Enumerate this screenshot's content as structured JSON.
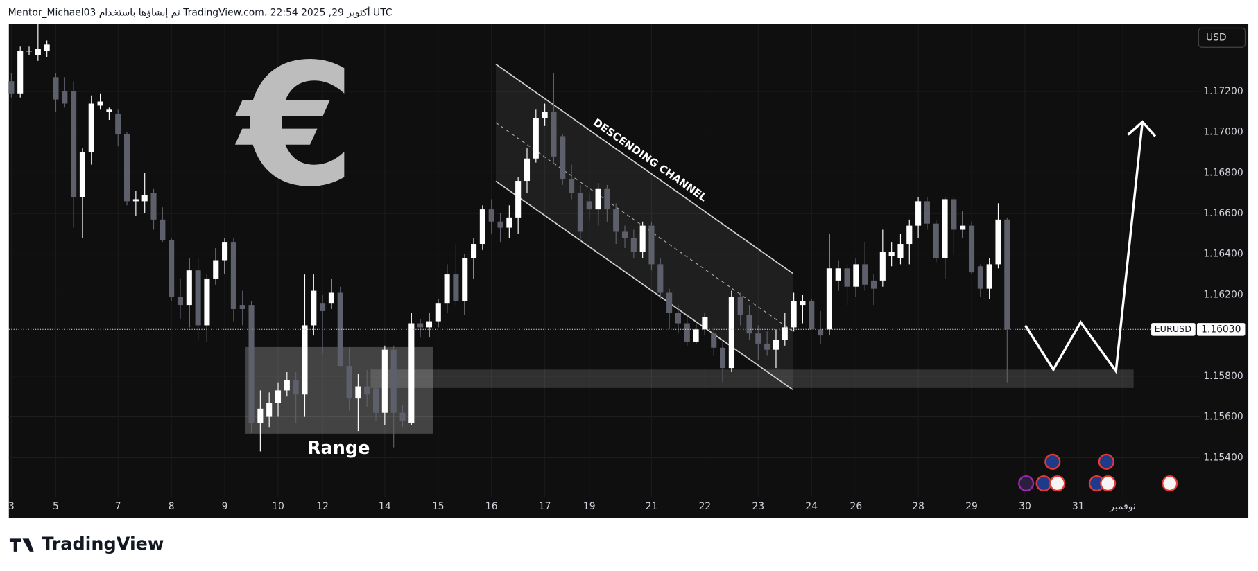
{
  "header": "Mentor_Michael03 تم إنشاؤها باستخدام TradingView.com، 22:54 2025 ,29 أكتوبر UTC",
  "footer": "TradingView",
  "chart_data": {
    "type": "candlestick",
    "symbol": "EURUSD",
    "currency": "USD",
    "annotations": {
      "channel": "DESCENDING CHANNEL",
      "range": "Range",
      "symbol": "€"
    },
    "colors": {
      "up": "#ffffff",
      "down": "#5d606b"
    },
    "grid": true,
    "last_price": {
      "value": 1.1603,
      "label": "1.16030"
    },
    "ylim": [
      1.15206,
      1.17531
    ],
    "yticks": [
      {
        "value": 1.154,
        "label": "1.15400"
      },
      {
        "value": 1.156,
        "label": "1.15600"
      },
      {
        "value": 1.158,
        "label": "1.15800"
      },
      {
        "value": 1.162,
        "label": "1.16200"
      },
      {
        "value": 1.164,
        "label": "1.16400"
      },
      {
        "value": 1.166,
        "label": "1.16600"
      },
      {
        "value": 1.168,
        "label": "1.16800"
      },
      {
        "value": 1.17,
        "label": "1.17000"
      },
      {
        "value": 1.172,
        "label": "1.17200"
      }
    ],
    "xlim": [
      -0.1,
      133.8
    ],
    "xticks": [
      {
        "value": 0,
        "label": "3"
      },
      {
        "value": 5,
        "label": "5"
      },
      {
        "value": 12,
        "label": "7"
      },
      {
        "value": 18,
        "label": "8"
      },
      {
        "value": 24,
        "label": "9"
      },
      {
        "value": 30,
        "label": "10"
      },
      {
        "value": 35,
        "label": "12"
      },
      {
        "value": 42,
        "label": "14"
      },
      {
        "value": 48,
        "label": "15"
      },
      {
        "value": 54,
        "label": "16"
      },
      {
        "value": 60,
        "label": "17"
      },
      {
        "value": 65,
        "label": "19"
      },
      {
        "value": 72,
        "label": "21"
      },
      {
        "value": 78,
        "label": "22"
      },
      {
        "value": 84,
        "label": "23"
      },
      {
        "value": 90,
        "label": "24"
      },
      {
        "value": 95,
        "label": "26"
      },
      {
        "value": 102,
        "label": "28"
      },
      {
        "value": 108,
        "label": "29"
      },
      {
        "value": 114,
        "label": "30"
      },
      {
        "value": 120,
        "label": "31"
      },
      {
        "value": 125,
        "label": "نوفمبر"
      }
    ],
    "candles": [
      [
        1.1725,
        1.1729,
        1.1717,
        1.1719
      ],
      [
        1.1719,
        1.1742,
        1.1717,
        1.174
      ],
      [
        1.174,
        1.1742,
        1.1738,
        1.174
      ],
      [
        1.1738,
        1.1753,
        1.1735,
        1.1741
      ],
      [
        1.174,
        1.1745,
        1.1737,
        1.1743
      ],
      [
        1.1727,
        1.1729,
        1.171,
        1.1716
      ],
      [
        1.172,
        1.1727,
        1.1712,
        1.1714
      ],
      [
        1.172,
        1.1725,
        1.1653,
        1.1668
      ],
      [
        1.1668,
        1.1692,
        1.1648,
        1.169
      ],
      [
        1.169,
        1.1718,
        1.1684,
        1.1714
      ],
      [
        1.1713,
        1.1719,
        1.1711,
        1.1715
      ],
      [
        1.171,
        1.1712,
        1.1706,
        1.1711
      ],
      [
        1.1709,
        1.1711,
        1.1693,
        1.1699
      ],
      [
        1.1699,
        1.17,
        1.1664,
        1.1666
      ],
      [
        1.1666,
        1.1671,
        1.1659,
        1.1667
      ],
      [
        1.1666,
        1.168,
        1.166,
        1.1669
      ],
      [
        1.167,
        1.1672,
        1.1652,
        1.1657
      ],
      [
        1.1657,
        1.1663,
        1.1646,
        1.1647
      ],
      [
        1.1647,
        1.1648,
        1.1617,
        1.1619
      ],
      [
        1.1619,
        1.1628,
        1.1608,
        1.1615
      ],
      [
        1.1615,
        1.1638,
        1.1604,
        1.1632
      ],
      [
        1.1632,
        1.1638,
        1.1598,
        1.1605
      ],
      [
        1.1605,
        1.163,
        1.1597,
        1.1628
      ],
      [
        1.1628,
        1.1643,
        1.1625,
        1.1637
      ],
      [
        1.1637,
        1.1648,
        1.163,
        1.1646
      ],
      [
        1.1646,
        1.1648,
        1.1607,
        1.1613
      ],
      [
        1.1615,
        1.1622,
        1.1605,
        1.1613
      ],
      [
        1.1615,
        1.1617,
        1.1552,
        1.1557
      ],
      [
        1.1557,
        1.1573,
        1.1543,
        1.1564
      ],
      [
        1.156,
        1.1572,
        1.1555,
        1.1567
      ],
      [
        1.1567,
        1.1577,
        1.156,
        1.1573
      ],
      [
        1.1573,
        1.1582,
        1.157,
        1.1578
      ],
      [
        1.1578,
        1.1582,
        1.1557,
        1.1571
      ],
      [
        1.1571,
        1.163,
        1.156,
        1.1605
      ],
      [
        1.1605,
        1.163,
        1.16,
        1.1622
      ],
      [
        1.1616,
        1.162,
        1.1591,
        1.1612
      ],
      [
        1.1616,
        1.1628,
        1.1613,
        1.1621
      ],
      [
        1.1621,
        1.1624,
        1.1585,
        1.1585
      ],
      [
        1.1585,
        1.1594,
        1.1563,
        1.1569
      ],
      [
        1.1569,
        1.1581,
        1.1553,
        1.1575
      ],
      [
        1.1575,
        1.1583,
        1.1565,
        1.1571
      ],
      [
        1.1574,
        1.1578,
        1.1558,
        1.1562
      ],
      [
        1.1562,
        1.1595,
        1.1556,
        1.1593
      ],
      [
        1.1593,
        1.1595,
        1.1545,
        1.1562
      ],
      [
        1.1562,
        1.1566,
        1.1555,
        1.1558
      ],
      [
        1.1557,
        1.1611,
        1.1556,
        1.1606
      ],
      [
        1.1606,
        1.1608,
        1.1599,
        1.1604
      ],
      [
        1.1604,
        1.1611,
        1.1599,
        1.1607
      ],
      [
        1.1607,
        1.1618,
        1.1604,
        1.1616
      ],
      [
        1.1616,
        1.1635,
        1.1611,
        1.163
      ],
      [
        1.163,
        1.1645,
        1.1615,
        1.1617
      ],
      [
        1.1617,
        1.164,
        1.161,
        1.1638
      ],
      [
        1.1638,
        1.1648,
        1.1628,
        1.1645
      ],
      [
        1.1645,
        1.1664,
        1.1642,
        1.1662
      ],
      [
        1.1662,
        1.1667,
        1.165,
        1.1656
      ],
      [
        1.1656,
        1.166,
        1.1646,
        1.1653
      ],
      [
        1.1653,
        1.1664,
        1.1648,
        1.1658
      ],
      [
        1.1658,
        1.1678,
        1.165,
        1.1676
      ],
      [
        1.1676,
        1.1692,
        1.167,
        1.1687
      ],
      [
        1.1687,
        1.1711,
        1.1685,
        1.1707
      ],
      [
        1.1707,
        1.1714,
        1.1703,
        1.171
      ],
      [
        1.171,
        1.1729,
        1.1685,
        1.1688
      ],
      [
        1.1698,
        1.1699,
        1.1674,
        1.1677
      ],
      [
        1.1677,
        1.1684,
        1.1667,
        1.167
      ],
      [
        1.167,
        1.1674,
        1.1646,
        1.1651
      ],
      [
        1.1666,
        1.167,
        1.1657,
        1.1662
      ],
      [
        1.1662,
        1.1675,
        1.1654,
        1.1672
      ],
      [
        1.1672,
        1.1674,
        1.1656,
        1.1662
      ],
      [
        1.1662,
        1.1665,
        1.1645,
        1.1651
      ],
      [
        1.1651,
        1.1654,
        1.1643,
        1.1648
      ],
      [
        1.1648,
        1.1652,
        1.1638,
        1.1641
      ],
      [
        1.1641,
        1.1656,
        1.1638,
        1.1654
      ],
      [
        1.1654,
        1.1656,
        1.1632,
        1.1635
      ],
      [
        1.1635,
        1.1638,
        1.1618,
        1.1621
      ],
      [
        1.1621,
        1.1623,
        1.1603,
        1.1611
      ],
      [
        1.1611,
        1.1615,
        1.1601,
        1.1606
      ],
      [
        1.1606,
        1.161,
        1.1595,
        1.1597
      ],
      [
        1.1597,
        1.1606,
        1.1596,
        1.1603
      ],
      [
        1.1603,
        1.1611,
        1.16,
        1.1609
      ],
      [
        1.1601,
        1.1604,
        1.159,
        1.1594
      ],
      [
        1.1594,
        1.1597,
        1.1577,
        1.1584
      ],
      [
        1.1584,
        1.1622,
        1.1582,
        1.1619
      ],
      [
        1.1619,
        1.1621,
        1.1605,
        1.161
      ],
      [
        1.161,
        1.1615,
        1.1598,
        1.1601
      ],
      [
        1.1601,
        1.1605,
        1.1588,
        1.1596
      ],
      [
        1.1596,
        1.1602,
        1.159,
        1.1593
      ],
      [
        1.1593,
        1.1603,
        1.1584,
        1.1598
      ],
      [
        1.1598,
        1.1611,
        1.1595,
        1.1604
      ],
      [
        1.1604,
        1.1621,
        1.1602,
        1.1617
      ],
      [
        1.1615,
        1.162,
        1.1606,
        1.1617
      ],
      [
        1.1617,
        1.1618,
        1.1603,
        1.1603
      ],
      [
        1.1603,
        1.1612,
        1.1596,
        1.16
      ],
      [
        1.1603,
        1.165,
        1.16,
        1.1633
      ],
      [
        1.1627,
        1.1637,
        1.1622,
        1.1633
      ],
      [
        1.1633,
        1.1635,
        1.1615,
        1.1624
      ],
      [
        1.1624,
        1.1638,
        1.1619,
        1.1635
      ],
      [
        1.1635,
        1.1646,
        1.1622,
        1.1625
      ],
      [
        1.1627,
        1.163,
        1.1615,
        1.1623
      ],
      [
        1.1627,
        1.1652,
        1.1624,
        1.1641
      ],
      [
        1.1639,
        1.1646,
        1.1634,
        1.1641
      ],
      [
        1.1638,
        1.165,
        1.1635,
        1.1645
      ],
      [
        1.1645,
        1.1657,
        1.1635,
        1.1654
      ],
      [
        1.1654,
        1.1668,
        1.1648,
        1.1666
      ],
      [
        1.1666,
        1.1668,
        1.1652,
        1.1655
      ],
      [
        1.1655,
        1.1657,
        1.1636,
        1.1638
      ],
      [
        1.1638,
        1.1668,
        1.1628,
        1.1667
      ],
      [
        1.1667,
        1.1668,
        1.164,
        1.1652
      ],
      [
        1.1652,
        1.1661,
        1.1648,
        1.1654
      ],
      [
        1.1654,
        1.1656,
        1.163,
        1.1631
      ],
      [
        1.1634,
        1.1635,
        1.1619,
        1.1623
      ],
      [
        1.1623,
        1.1638,
        1.1618,
        1.1635
      ],
      [
        1.1635,
        1.1665,
        1.1633,
        1.1657
      ],
      [
        1.1657,
        1.1658,
        1.1577,
        1.1603
      ]
    ]
  }
}
